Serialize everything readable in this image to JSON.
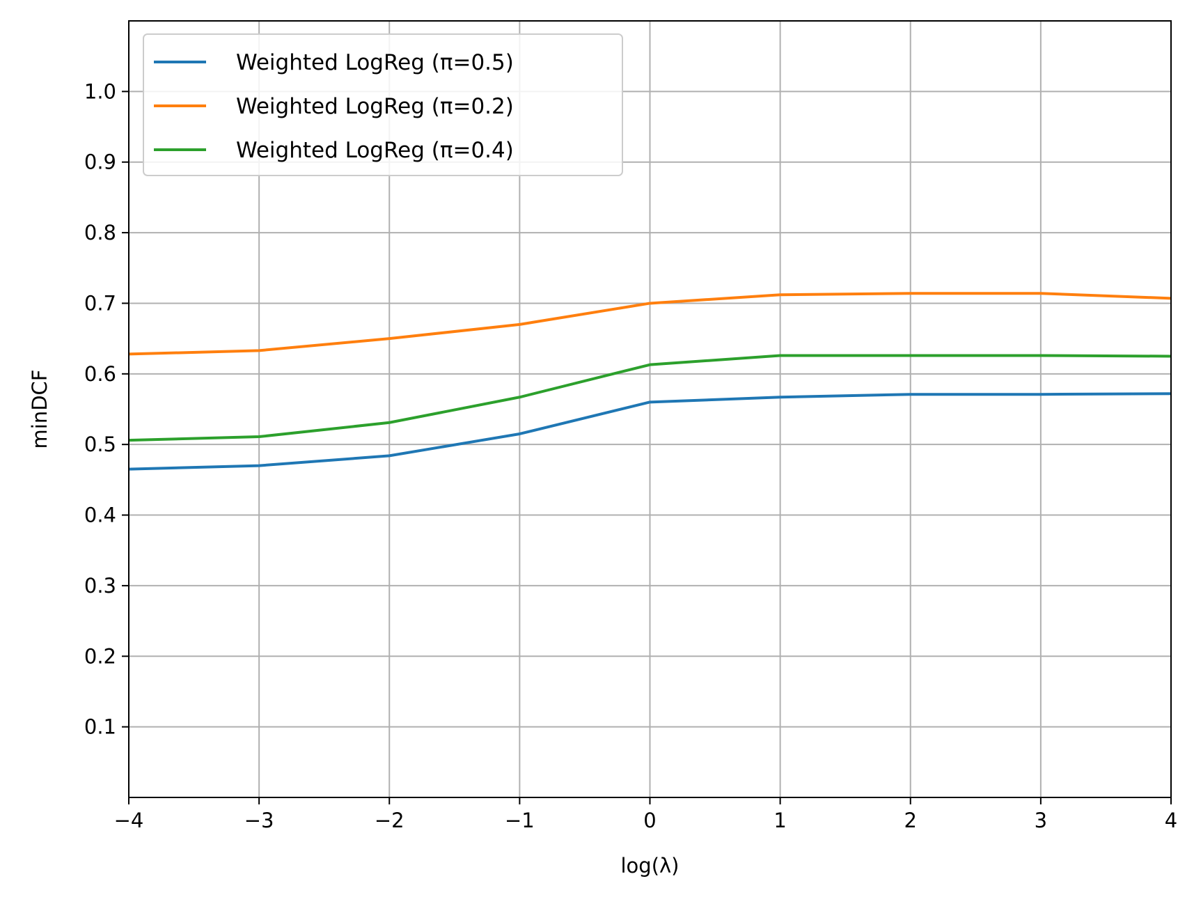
{
  "chart_data": {
    "type": "line",
    "xlabel": "log(λ)",
    "ylabel": "minDCF",
    "xlim": [
      -4,
      4
    ],
    "ylim": [
      0.0,
      1.1
    ],
    "x_ticks": [
      -4,
      -3,
      -2,
      -1,
      0,
      1,
      2,
      3,
      4
    ],
    "x_tick_labels": [
      "−4",
      "−3",
      "−2",
      "−1",
      "0",
      "1",
      "2",
      "3",
      "4"
    ],
    "y_ticks": [
      0.1,
      0.2,
      0.3,
      0.4,
      0.5,
      0.6,
      0.7,
      0.8,
      0.9,
      1.0
    ],
    "y_tick_labels": [
      "0.1",
      "0.2",
      "0.3",
      "0.4",
      "0.5",
      "0.6",
      "0.7",
      "0.8",
      "0.9",
      "1.0"
    ],
    "grid": true,
    "legend_position": "top-left",
    "x": [
      -4,
      -3,
      -2,
      -1,
      0,
      1,
      2,
      3,
      4
    ],
    "series": [
      {
        "name": "Weighted LogReg (π=0.5)",
        "color": "#1f77b4",
        "values": [
          0.465,
          0.47,
          0.484,
          0.515,
          0.56,
          0.567,
          0.571,
          0.571,
          0.572
        ]
      },
      {
        "name": "Weighted LogReg (π=0.2)",
        "color": "#ff7f0e",
        "values": [
          0.628,
          0.633,
          0.65,
          0.67,
          0.7,
          0.712,
          0.714,
          0.714,
          0.707
        ]
      },
      {
        "name": "Weighted LogReg (π=0.4)",
        "color": "#2ca02c",
        "values": [
          0.506,
          0.511,
          0.531,
          0.567,
          0.613,
          0.626,
          0.626,
          0.626,
          0.625
        ]
      }
    ]
  }
}
